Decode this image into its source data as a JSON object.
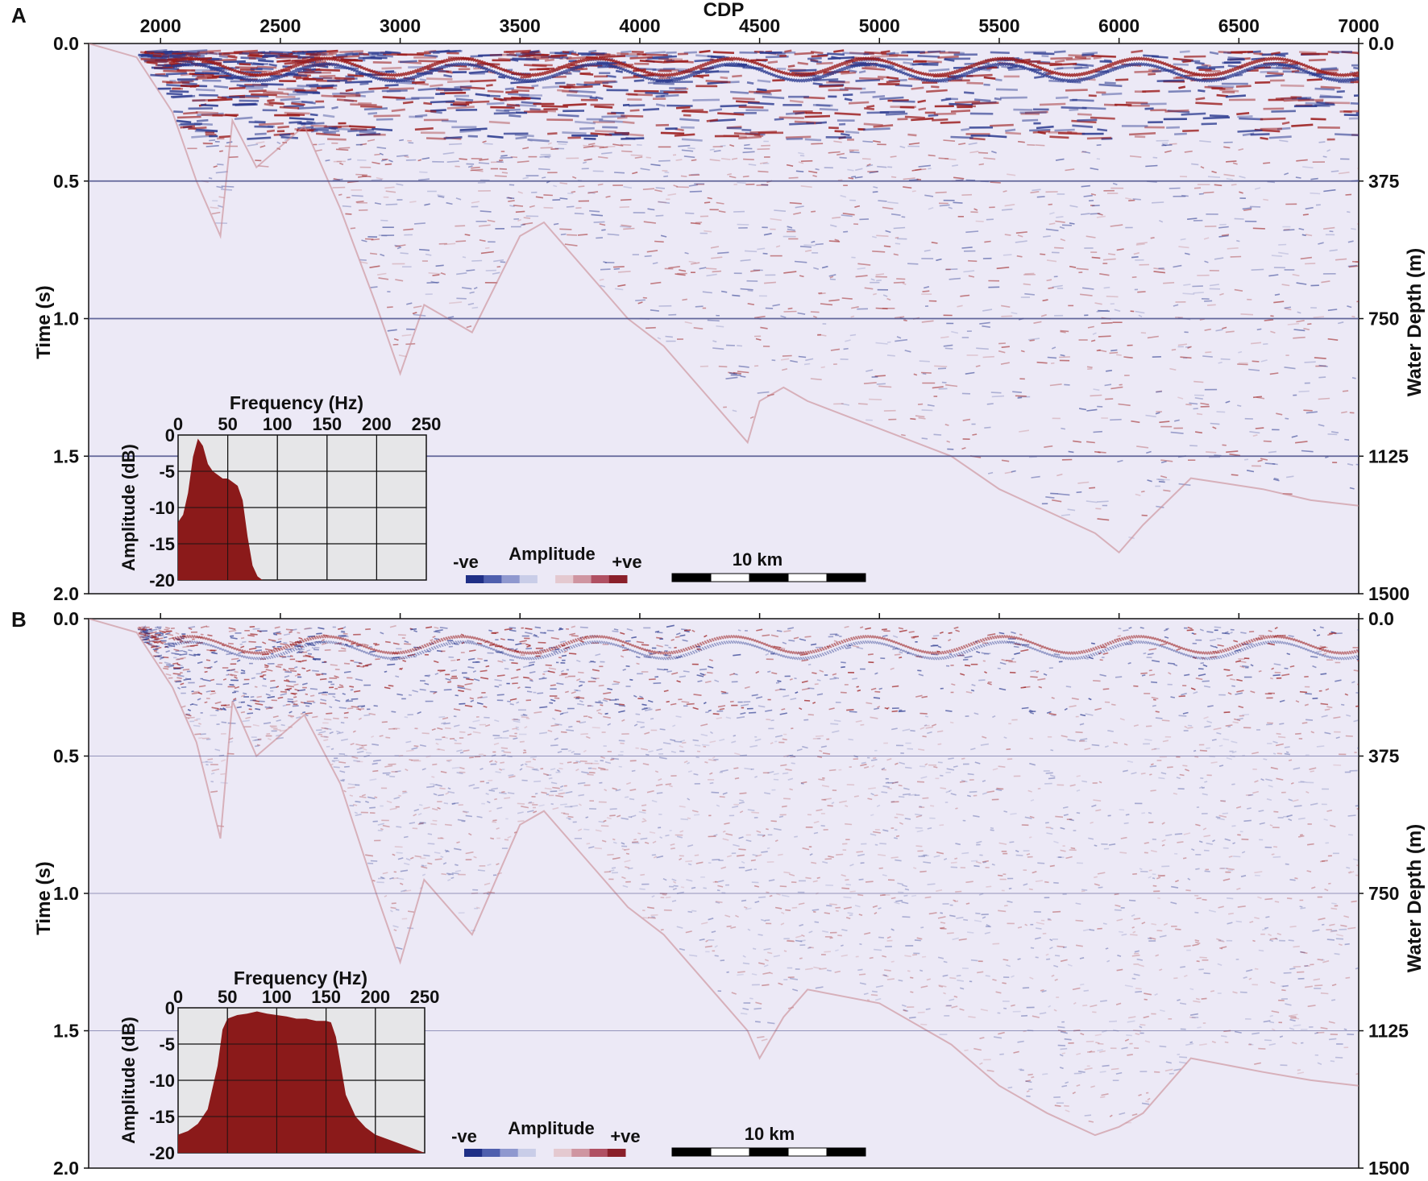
{
  "chart_data": [
    {
      "panel_label": "A",
      "type": "heatmap",
      "xlabel": "CDP",
      "ylabel": "Time (s)",
      "y2label": "Water Depth (m)",
      "xticks": [
        2000,
        2500,
        3000,
        3500,
        4000,
        4500,
        5000,
        5500,
        6000,
        6500,
        7000
      ],
      "xlim": [
        1700,
        7000
      ],
      "yticks": [
        0.0,
        0.5,
        1.0,
        1.5,
        2.0
      ],
      "ytick_labels": [
        "0.0",
        "0.5",
        "1.0",
        "1.5",
        "2.0"
      ],
      "ylim": [
        0.0,
        2.0
      ],
      "y2ticks": [
        0,
        375,
        750,
        1125,
        1500
      ],
      "y2tick_labels": [
        "0.0",
        "375",
        "750",
        "1125",
        "1500"
      ],
      "grid_lines_y": [
        0.5,
        1.0,
        1.5
      ],
      "seabed_profile": {
        "x": [
          1700,
          1900,
          2050,
          2150,
          2250,
          2300,
          2400,
          2600,
          2750,
          2900,
          3000,
          3100,
          3300,
          3500,
          3600,
          3800,
          3950,
          4100,
          4300,
          4450,
          4500,
          4600,
          4700,
          5000,
          5300,
          5500,
          5700,
          5900,
          6000,
          6100,
          6300,
          6600,
          6800,
          7000
        ],
        "y": [
          0.0,
          0.05,
          0.25,
          0.5,
          0.7,
          0.28,
          0.45,
          0.3,
          0.6,
          0.95,
          1.2,
          0.95,
          1.05,
          0.7,
          0.65,
          0.85,
          1.0,
          1.1,
          1.3,
          1.45,
          1.3,
          1.25,
          1.3,
          1.4,
          1.5,
          1.62,
          1.7,
          1.78,
          1.85,
          1.75,
          1.58,
          1.62,
          1.66,
          1.68
        ]
      },
      "inset": {
        "title": "Frequency (Hz)",
        "xlabel": "Frequency (Hz)",
        "ylabel": "Amplitude (dB)",
        "xticks": [
          0,
          50,
          100,
          150,
          200,
          250
        ],
        "yticks": [
          0,
          -5,
          -10,
          -15,
          -20
        ],
        "xlim": [
          0,
          250
        ],
        "ylim": [
          -20,
          0
        ],
        "spectrum": {
          "frequency": [
            0,
            5,
            10,
            15,
            20,
            25,
            30,
            35,
            40,
            45,
            50,
            55,
            60,
            65,
            70,
            75,
            80,
            85,
            90
          ],
          "amplitude_db": [
            -12,
            -11,
            -8,
            -3,
            -0.5,
            -1.5,
            -4,
            -5,
            -5.5,
            -6,
            -6,
            -6.5,
            -7,
            -9,
            -14,
            -18,
            -19.5,
            -20,
            -20
          ]
        }
      },
      "amplitude_legend": {
        "title": "Amplitude",
        "neg_label": "-ve",
        "pos_label": "+ve"
      },
      "scale_bar": {
        "label": "10 km"
      }
    },
    {
      "panel_label": "B",
      "type": "heatmap",
      "xlabel": "",
      "ylabel": "Time (s)",
      "y2label": "Water Depth (m)",
      "xticks": [
        2000,
        2500,
        3000,
        3500,
        4000,
        4500,
        5000,
        5500,
        6000,
        6500,
        7000
      ],
      "xlim": [
        1700,
        7000
      ],
      "yticks": [
        0.0,
        0.5,
        1.0,
        1.5,
        2.0
      ],
      "ytick_labels": [
        "0.0",
        "0.5",
        "1.0",
        "1.5",
        "2.0"
      ],
      "ylim": [
        0.0,
        2.0
      ],
      "y2ticks": [
        0,
        375,
        750,
        1125,
        1500
      ],
      "y2tick_labels": [
        "0.0",
        "375",
        "750",
        "1125",
        "1500"
      ],
      "grid_lines_y": [
        0.5,
        1.0,
        1.5
      ],
      "seabed_profile": {
        "x": [
          1700,
          1900,
          2050,
          2150,
          2250,
          2300,
          2400,
          2600,
          2750,
          2900,
          3000,
          3100,
          3300,
          3500,
          3600,
          3800,
          3950,
          4100,
          4300,
          4450,
          4500,
          4600,
          4700,
          5000,
          5300,
          5500,
          5700,
          5900,
          6000,
          6100,
          6300,
          6600,
          6800,
          7000
        ],
        "y": [
          0.0,
          0.05,
          0.25,
          0.45,
          0.8,
          0.3,
          0.5,
          0.35,
          0.6,
          1.0,
          1.25,
          0.95,
          1.15,
          0.75,
          0.7,
          0.9,
          1.05,
          1.15,
          1.35,
          1.5,
          1.6,
          1.45,
          1.35,
          1.4,
          1.55,
          1.7,
          1.8,
          1.88,
          1.85,
          1.8,
          1.6,
          1.65,
          1.68,
          1.7
        ]
      },
      "inset": {
        "title": "Frequency (Hz)",
        "xlabel": "Frequency (Hz)",
        "ylabel": "Amplitude (dB)",
        "xticks": [
          0,
          50,
          100,
          150,
          200,
          250
        ],
        "yticks": [
          0,
          -5,
          -10,
          -15,
          -20
        ],
        "xlim": [
          0,
          250
        ],
        "ylim": [
          -20,
          0
        ],
        "spectrum": {
          "frequency": [
            0,
            10,
            20,
            30,
            40,
            45,
            50,
            60,
            70,
            80,
            90,
            100,
            110,
            120,
            130,
            140,
            150,
            155,
            160,
            165,
            170,
            180,
            190,
            200,
            210,
            220,
            230,
            240,
            250
          ],
          "amplitude_db": [
            -17.5,
            -17,
            -16,
            -14,
            -8,
            -3,
            -1.5,
            -1,
            -0.8,
            -0.5,
            -0.8,
            -1,
            -1.2,
            -1.5,
            -1.5,
            -1.8,
            -1.8,
            -2,
            -4,
            -8,
            -12,
            -15,
            -16.5,
            -17.5,
            -18,
            -18.5,
            -19,
            -19.5,
            -20
          ]
        }
      },
      "amplitude_legend": {
        "title": "Amplitude",
        "neg_label": "-ve",
        "pos_label": "+ve"
      },
      "scale_bar": {
        "label": "10 km"
      }
    }
  ],
  "colors": {
    "background_fill": "#ece9f6",
    "grid_line": "#4a4f8a",
    "spectrum_fill": "#8b1a1a",
    "inset_background": "#e6e6e8",
    "seismic_negative": "#2b3a8f",
    "seismic_positive": "#9b1b1b",
    "colorbar": [
      "#1f2f86",
      "#4f5fae",
      "#8f98cf",
      "#c9cde8",
      "#ece9f6",
      "#e4c9d0",
      "#cf95a1",
      "#b05063",
      "#8a1f2a"
    ]
  }
}
